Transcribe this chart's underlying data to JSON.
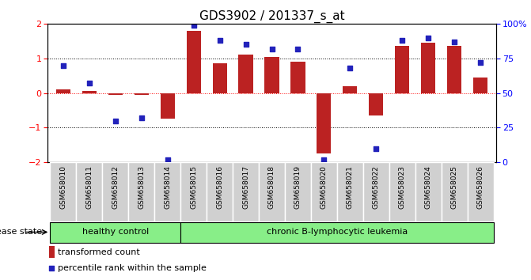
{
  "title": "GDS3902 / 201337_s_at",
  "samples": [
    "GSM658010",
    "GSM658011",
    "GSM658012",
    "GSM658013",
    "GSM658014",
    "GSM658015",
    "GSM658016",
    "GSM658017",
    "GSM658018",
    "GSM658019",
    "GSM658020",
    "GSM658021",
    "GSM658022",
    "GSM658023",
    "GSM658024",
    "GSM658025",
    "GSM658026"
  ],
  "transformed_count": [
    0.1,
    0.05,
    -0.05,
    -0.05,
    -0.75,
    1.8,
    0.85,
    1.1,
    1.05,
    0.9,
    -1.75,
    0.2,
    -0.65,
    1.35,
    1.45,
    1.35,
    0.45
  ],
  "percentile_rank": [
    70,
    57,
    30,
    32,
    2,
    99,
    88,
    85,
    82,
    82,
    2,
    68,
    10,
    88,
    90,
    87,
    72
  ],
  "healthy_control_count": 5,
  "group_labels": [
    "healthy control",
    "chronic B-lymphocytic leukemia"
  ],
  "bar_color": "#BB2222",
  "dot_color": "#2222BB",
  "label_bg_color": "#D0D0D0",
  "band_color": "#88EE88",
  "ylim": [
    -2,
    2
  ],
  "y_ticks": [
    -2,
    -1,
    0,
    1,
    2
  ],
  "right_y_ticks": [
    0,
    25,
    50,
    75,
    100
  ],
  "right_y_labels": [
    "0",
    "25",
    "50",
    "75",
    "100%"
  ],
  "disease_state_label": "disease state",
  "legend_bar_label": "transformed count",
  "legend_dot_label": "percentile rank within the sample",
  "title_fontsize": 11,
  "tick_fontsize": 8,
  "sample_fontsize": 6.5,
  "band_fontsize": 8,
  "legend_fontsize": 8
}
